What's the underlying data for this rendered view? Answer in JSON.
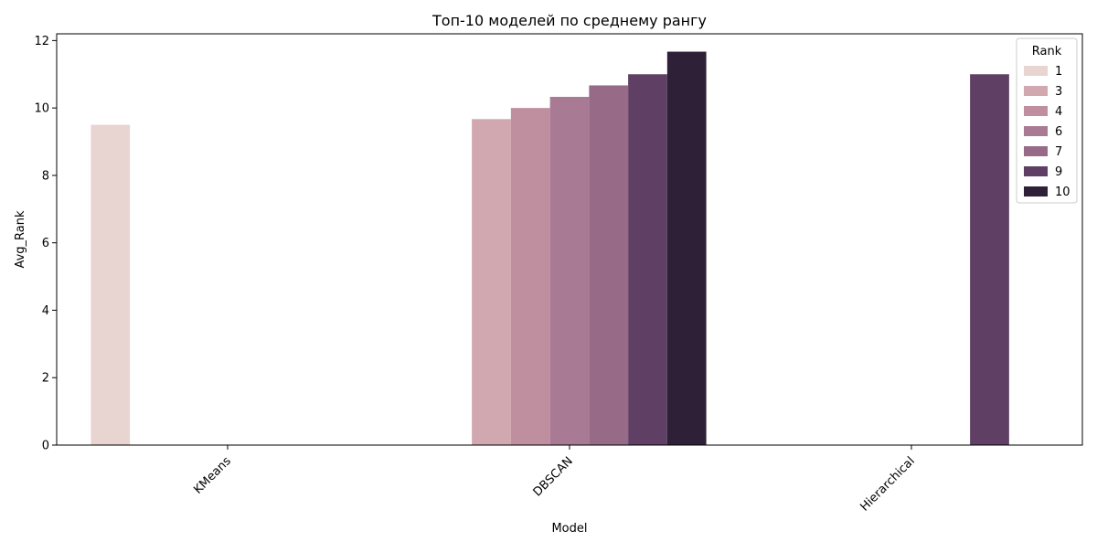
{
  "chart_data": {
    "type": "bar",
    "title": "Топ-10 моделей по среднему рангу",
    "xlabel": "Model",
    "ylabel": "Avg_Rank",
    "categories": [
      "KMeans",
      "DBSCAN",
      "Hierarchical"
    ],
    "ylim": [
      0,
      12.2
    ],
    "yticks": [
      0,
      2,
      4,
      6,
      8,
      10,
      12
    ],
    "grid": false,
    "legend": {
      "title": "Rank",
      "placement": "top-right"
    },
    "series": [
      {
        "name": "1",
        "color": "#e8d4d0",
        "values": [
          9.5,
          null,
          null
        ]
      },
      {
        "name": "3",
        "color": "#d1a7b0",
        "values": [
          null,
          9.67,
          null
        ]
      },
      {
        "name": "4",
        "color": "#c08f9f",
        "values": [
          null,
          10.0,
          null
        ]
      },
      {
        "name": "6",
        "color": "#a97a94",
        "values": [
          null,
          10.33,
          null
        ]
      },
      {
        "name": "7",
        "color": "#976b87",
        "values": [
          null,
          10.67,
          null
        ]
      },
      {
        "name": "9",
        "color": "#603f65",
        "values": [
          null,
          11.0,
          11.0
        ]
      },
      {
        "name": "10",
        "color": "#2e2037",
        "values": [
          null,
          11.67,
          null
        ]
      }
    ]
  }
}
